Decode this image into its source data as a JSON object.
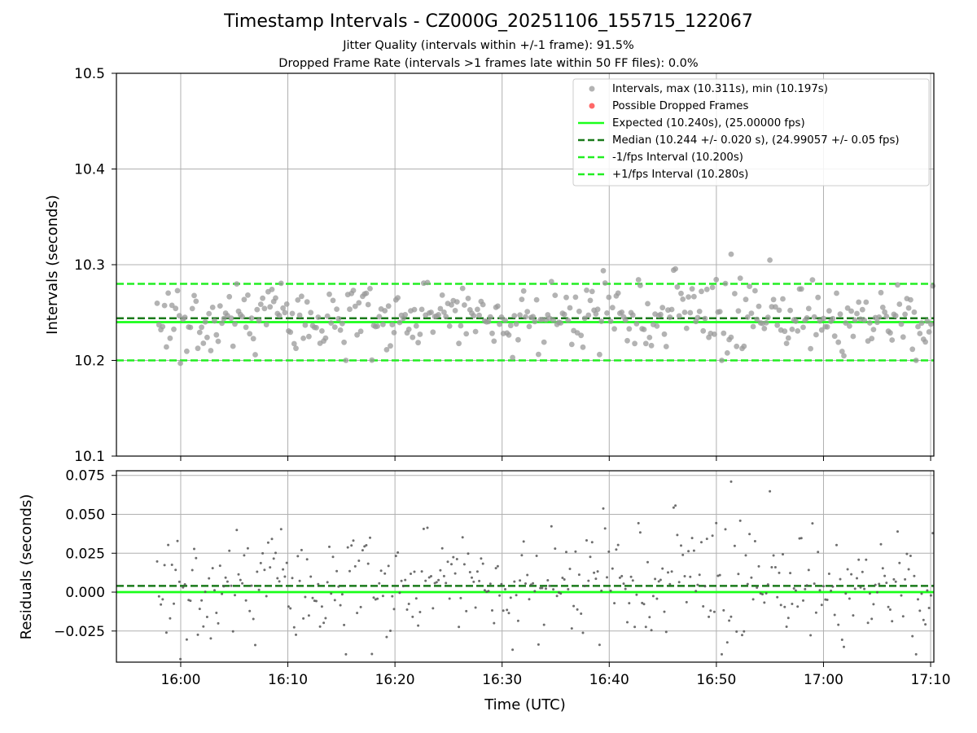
{
  "figure": {
    "title": "Timestamp Intervals - CZ000G_20251106_155715_122067",
    "subtitle_jitter": "Jitter Quality (intervals within +/-1 frame): 91.5%",
    "subtitle_dropped": "Dropped Frame Rate (intervals >1 frames late within 50 FF files): 0.0%"
  },
  "chart_data": [
    {
      "type": "scatter",
      "panel": "intervals",
      "ylabel": "Intervals (seconds)",
      "xlabel": "",
      "ylim": [
        10.1,
        10.5
      ],
      "yticks": [
        10.1,
        10.2,
        10.3,
        10.4,
        10.5
      ],
      "ytick_labels": [
        "10.1",
        "10.2",
        "10.3",
        "10.4",
        "10.5"
      ],
      "xlim_minutes": [
        954,
        1030.3
      ],
      "grid": true,
      "legend_position": "top-right",
      "colors": {
        "intervals": "#999999",
        "dropped": "#ff4d4d",
        "expected": "#1aff1a",
        "median": "#1a7a1a",
        "fps_bounds": "#22ee22"
      },
      "series": [
        {
          "name": "Intervals, max (10.311s), min (10.197s)",
          "kind": "points",
          "max": 10.311,
          "min": 10.197,
          "count": 420
        },
        {
          "name": "Possible Dropped Frames",
          "kind": "points",
          "values": []
        },
        {
          "name": "Expected (10.240s), (25.00000 fps)",
          "kind": "hline",
          "y": 10.24
        },
        {
          "name": "Median (10.244 +/- 0.020 s), (24.99057 +/- 0.05 fps)",
          "kind": "hline",
          "y": 10.244
        },
        {
          "name": "-1/fps Interval (10.200s)",
          "kind": "hline",
          "y": 10.2
        },
        {
          "name": "+1/fps Interval (10.280s)",
          "kind": "hline",
          "y": 10.28
        }
      ]
    },
    {
      "type": "scatter",
      "panel": "residuals",
      "ylabel": "Residuals (seconds)",
      "xlabel": "Time (UTC)",
      "ylim": [
        -0.045,
        0.078
      ],
      "yticks": [
        -0.025,
        0.0,
        0.025,
        0.05,
        0.075
      ],
      "ytick_labels": [
        "−0.025",
        "0.000",
        "0.025",
        "0.050",
        "0.075"
      ],
      "xticks_minutes": [
        960,
        970,
        980,
        990,
        1000,
        1010,
        1020,
        1030
      ],
      "xtick_labels": [
        "16:00",
        "16:10",
        "16:20",
        "16:30",
        "16:40",
        "16:50",
        "17:00",
        "17:10"
      ],
      "grid": true,
      "series": [
        {
          "kind": "points",
          "name": "",
          "reference_expected": 0.0,
          "reference_median": 0.004
        },
        {
          "kind": "hline",
          "name": "",
          "y": 0.0
        },
        {
          "kind": "hline",
          "name": "",
          "y": 0.004
        }
      ]
    }
  ]
}
